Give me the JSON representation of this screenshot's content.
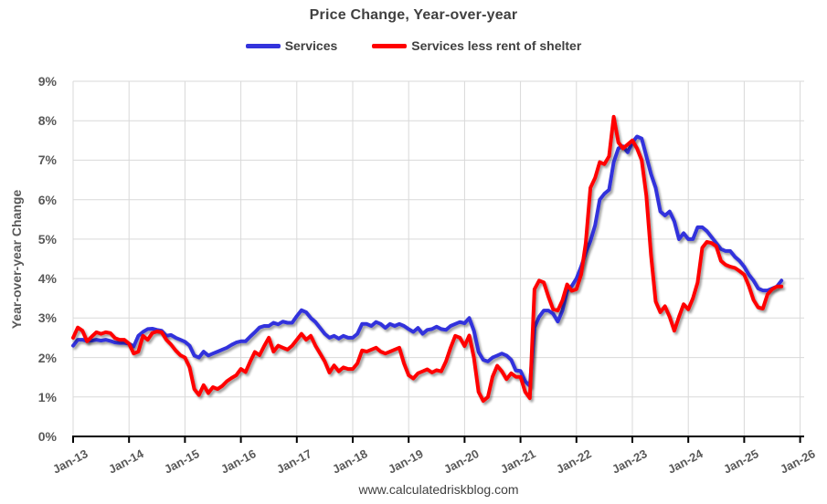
{
  "chart": {
    "title": "Price Change, Year-over-year",
    "y_axis_title": "Year-over-year Change",
    "source": "www.calculatedriskblog.com"
  },
  "chart_data": {
    "type": "line",
    "title": "Price Change, Year-over-year",
    "ylabel": "Year-over-year Change",
    "ylim": [
      0,
      9
    ],
    "grid": true,
    "legend_position": "top-center",
    "gridline_color": "#D9D9D9",
    "axis_color": "#000000",
    "label_color": "#595959",
    "y_tick_labels": [
      "0%",
      "1%",
      "2%",
      "3%",
      "4%",
      "5%",
      "6%",
      "7%",
      "8%",
      "9%"
    ],
    "x_tick_labels": [
      "Jan-13",
      "Jan-14",
      "Jan-15",
      "Jan-16",
      "Jan-17",
      "Jan-18",
      "Jan-19",
      "Jan-20",
      "Jan-21",
      "Jan-22",
      "Jan-23",
      "Jan-24",
      "Jan-25",
      "Jan-26"
    ],
    "x_months_per_tick": 12,
    "x_axis_span_months": 156,
    "x_first_point": "Jan-2013",
    "x_last_point": "Sep-2025",
    "series": [
      {
        "name": "Services",
        "color": "#3333DC",
        "values": [
          2.3,
          2.45,
          2.45,
          2.42,
          2.43,
          2.45,
          2.43,
          2.45,
          2.42,
          2.38,
          2.37,
          2.37,
          2.35,
          2.28,
          2.55,
          2.65,
          2.72,
          2.73,
          2.7,
          2.68,
          2.55,
          2.57,
          2.5,
          2.45,
          2.4,
          2.3,
          2.05,
          2.0,
          2.15,
          2.05,
          2.1,
          2.15,
          2.2,
          2.25,
          2.32,
          2.38,
          2.41,
          2.41,
          2.53,
          2.64,
          2.76,
          2.8,
          2.8,
          2.88,
          2.84,
          2.91,
          2.88,
          2.88,
          3.05,
          3.2,
          3.15,
          3.0,
          2.9,
          2.75,
          2.6,
          2.5,
          2.55,
          2.48,
          2.55,
          2.5,
          2.5,
          2.6,
          2.85,
          2.85,
          2.8,
          2.9,
          2.85,
          2.75,
          2.85,
          2.8,
          2.85,
          2.8,
          2.72,
          2.65,
          2.75,
          2.6,
          2.7,
          2.72,
          2.78,
          2.72,
          2.7,
          2.8,
          2.85,
          2.9,
          2.87,
          3.0,
          2.68,
          2.14,
          1.94,
          1.9,
          2.0,
          2.05,
          2.1,
          2.05,
          1.94,
          1.67,
          1.66,
          1.4,
          1.28,
          2.76,
          3.03,
          3.19,
          3.19,
          3.11,
          2.91,
          3.19,
          3.69,
          3.81,
          4.0,
          4.3,
          4.65,
          4.95,
          5.35,
          6.0,
          6.15,
          6.25,
          6.95,
          7.3,
          7.35,
          7.2,
          7.45,
          7.6,
          7.55,
          7.1,
          6.65,
          6.3,
          5.7,
          5.6,
          5.7,
          5.45,
          5.0,
          5.15,
          5.0,
          5.0,
          5.3,
          5.3,
          5.2,
          5.05,
          4.9,
          4.75,
          4.7,
          4.7,
          4.55,
          4.45,
          4.3,
          4.1,
          3.95,
          3.75,
          3.7,
          3.7,
          3.75,
          3.8,
          3.95
        ]
      },
      {
        "name": "Services less rent of shelter",
        "color": "#FF0000",
        "values": [
          2.5,
          2.76,
          2.68,
          2.41,
          2.53,
          2.64,
          2.6,
          2.64,
          2.62,
          2.49,
          2.45,
          2.45,
          2.35,
          2.1,
          2.15,
          2.55,
          2.45,
          2.62,
          2.66,
          2.64,
          2.45,
          2.33,
          2.18,
          2.06,
          2.0,
          1.75,
          1.2,
          1.05,
          1.3,
          1.1,
          1.25,
          1.2,
          1.28,
          1.4,
          1.48,
          1.55,
          1.71,
          1.63,
          1.9,
          2.14,
          2.06,
          2.29,
          2.5,
          2.15,
          2.3,
          2.25,
          2.2,
          2.3,
          2.45,
          2.6,
          2.45,
          2.55,
          2.3,
          2.1,
          1.9,
          1.62,
          1.8,
          1.65,
          1.75,
          1.71,
          1.71,
          1.85,
          2.18,
          2.15,
          2.2,
          2.25,
          2.15,
          2.1,
          2.15,
          2.2,
          2.25,
          1.85,
          1.55,
          1.47,
          1.6,
          1.65,
          1.7,
          1.62,
          1.68,
          1.65,
          1.9,
          2.25,
          2.55,
          2.5,
          2.29,
          2.56,
          2.0,
          1.13,
          0.9,
          1.0,
          1.51,
          1.79,
          1.65,
          1.45,
          1.6,
          1.51,
          1.51,
          1.13,
          0.97,
          3.73,
          3.95,
          3.9,
          3.54,
          3.22,
          3.19,
          3.45,
          3.85,
          3.69,
          3.73,
          4.1,
          4.9,
          6.3,
          6.55,
          6.95,
          6.9,
          7.1,
          8.1,
          7.45,
          7.3,
          7.4,
          7.5,
          7.3,
          7.0,
          6.1,
          4.6,
          3.42,
          3.15,
          3.3,
          3.03,
          2.68,
          3.03,
          3.35,
          3.22,
          3.5,
          3.9,
          4.78,
          4.93,
          4.9,
          4.82,
          4.45,
          4.35,
          4.3,
          4.27,
          4.19,
          4.1,
          3.81,
          3.46,
          3.27,
          3.24,
          3.6,
          3.73,
          3.8,
          3.8
        ]
      }
    ]
  }
}
